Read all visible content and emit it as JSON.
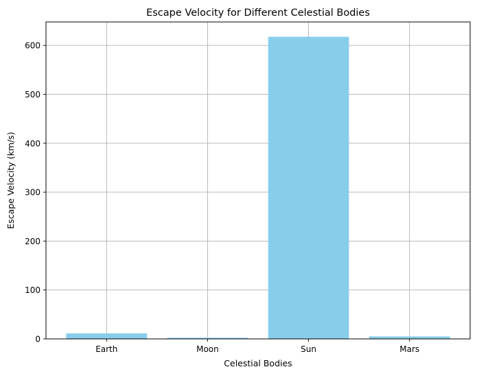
{
  "chart_data": {
    "type": "bar",
    "title": "Escape Velocity for Different Celestial Bodies",
    "xlabel": "Celestial Bodies",
    "ylabel": "Escape Velocity (km/s)",
    "categories": [
      "Earth",
      "Moon",
      "Sun",
      "Mars"
    ],
    "values": [
      11.19,
      2.38,
      617.7,
      5.03
    ],
    "ylim": [
      0,
      648
    ],
    "yticks": [
      0,
      100,
      200,
      300,
      400,
      500,
      600
    ],
    "grid": true,
    "bar_color": "#87ceeb",
    "grid_color": "#b0b0b0"
  }
}
